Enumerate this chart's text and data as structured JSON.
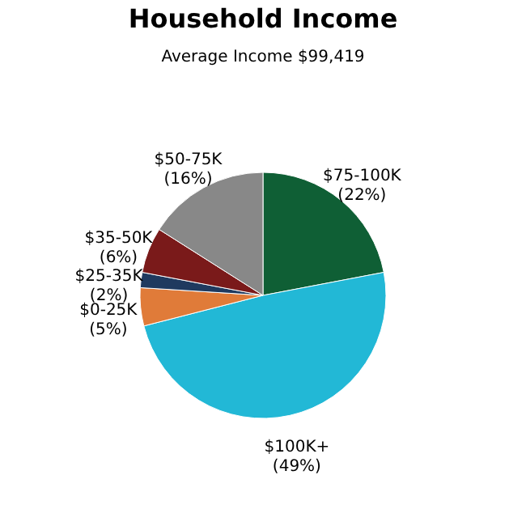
{
  "chart_data": {
    "type": "pie",
    "title": "Household Income",
    "subtitle": "Average Income  $99,419",
    "categories": [
      "$75-100K",
      "$100K+",
      "$0-25K",
      "$25-35K",
      "$35-50K",
      "$50-75K"
    ],
    "values": [
      22,
      49,
      5,
      2,
      6,
      16
    ],
    "value_labels": [
      "(22%)",
      "(49%)",
      "(5%)",
      "(2%)",
      "(6%)",
      "(16%)"
    ],
    "colors": [
      "#0f5f35",
      "#22b8d6",
      "#e07b39",
      "#1f3a5f",
      "#7a1a1a",
      "#888888"
    ],
    "legend": false
  }
}
